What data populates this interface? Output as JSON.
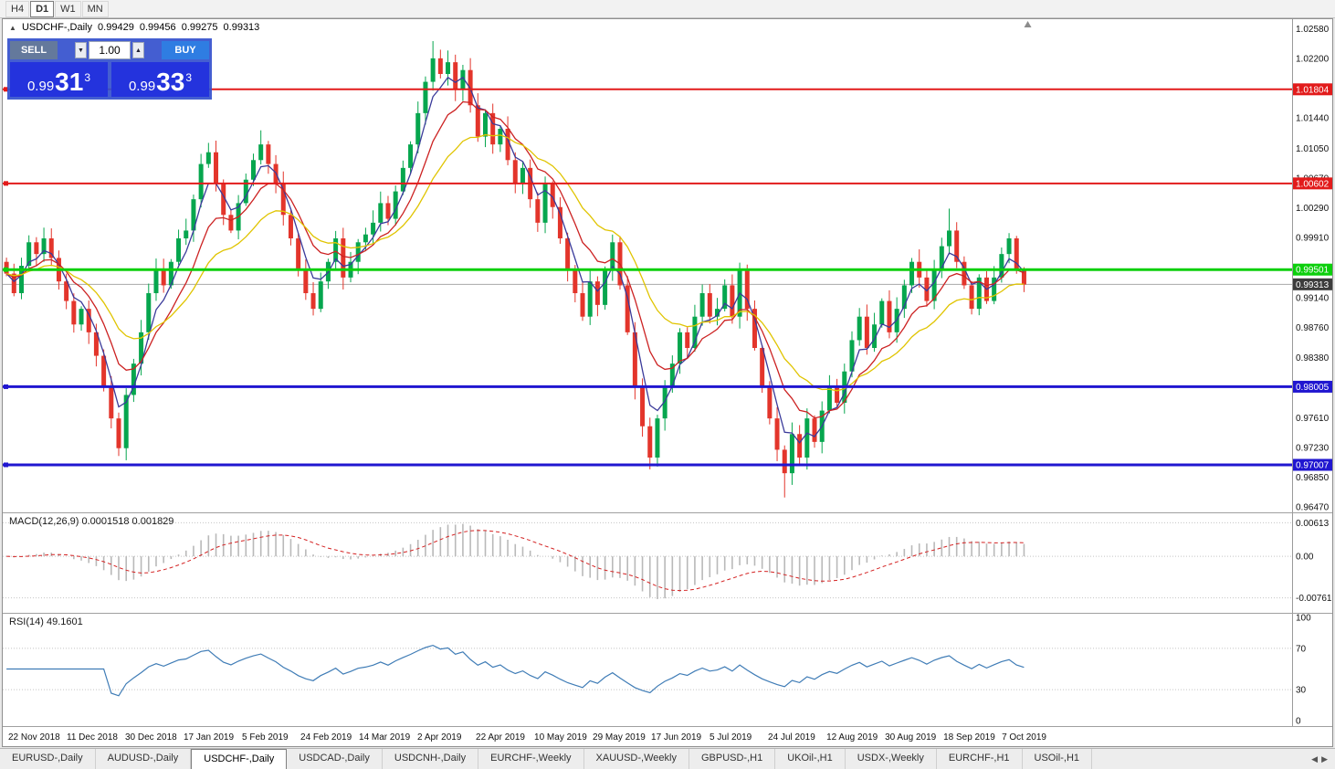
{
  "toolbar": {
    "timeframes": [
      {
        "label": "H4",
        "active": false
      },
      {
        "label": "D1",
        "active": true
      },
      {
        "label": "W1",
        "active": false
      },
      {
        "label": "MN",
        "active": false
      }
    ]
  },
  "chart_header": {
    "marker": "▲",
    "symbol": "USDCHF-,Daily",
    "open": "0.99429",
    "high": "0.99456",
    "low": "0.99275",
    "close": "0.99313"
  },
  "trade_panel": {
    "sell_label": "SELL",
    "buy_label": "BUY",
    "volume": "1.00",
    "spinner_down": "▼",
    "spinner_up": "▲",
    "sell_price": {
      "big": "0.99",
      "pips": "31",
      "pt": "3"
    },
    "buy_price": {
      "big": "0.99",
      "pips": "33",
      "pt": "3"
    }
  },
  "chart_data": {
    "type": "candlestick",
    "symbol": "USDCHF-",
    "timeframe": "Daily",
    "price_range": [
      0.964,
      1.027
    ],
    "data_fraction": 0.795,
    "current_price": {
      "value": 0.99313,
      "line_color": "#a8a8a8",
      "label_bg": "#3c3c3c"
    },
    "colors": {
      "up": "#06a64e",
      "down": "#e3352b"
    },
    "candles": {
      "first_open": 0.996,
      "closes": [
        0.9945,
        0.992,
        0.9955,
        0.9985,
        0.997,
        0.999,
        0.9965,
        0.9935,
        0.991,
        0.988,
        0.99,
        0.987,
        0.984,
        0.98,
        0.976,
        0.9722,
        0.979,
        0.983,
        0.987,
        0.992,
        0.995,
        0.993,
        0.996,
        0.999,
        1.0,
        1.004,
        1.0085,
        1.01,
        1.006,
        1.002,
        1.0,
        1.0035,
        1.0065,
        1.009,
        1.011,
        1.0085,
        1.006,
        1.002,
        0.999,
        0.995,
        0.992,
        0.99,
        0.9935,
        0.996,
        0.999,
        0.994,
        0.996,
        0.9985,
        0.9995,
        1.001,
        1.0035,
        1.0015,
        1.005,
        1.008,
        1.011,
        1.015,
        1.019,
        1.022,
        1.02,
        1.0215,
        1.018,
        1.0205,
        1.016,
        1.012,
        1.015,
        1.011,
        1.013,
        1.009,
        1.006,
        1.008,
        1.004,
        1.001,
        1.006,
        1.003,
        0.999,
        0.995,
        0.992,
        0.989,
        0.9935,
        0.9905,
        0.995,
        0.9985,
        0.993,
        0.987,
        0.98,
        0.975,
        0.971,
        0.976,
        0.98,
        0.983,
        0.987,
        0.985,
        0.989,
        0.992,
        0.989,
        0.99,
        0.993,
        0.989,
        0.995,
        0.99,
        0.985,
        0.98,
        0.976,
        0.972,
        0.969,
        0.974,
        0.971,
        0.976,
        0.973,
        0.977,
        0.98,
        0.978,
        0.982,
        0.986,
        0.989,
        0.985,
        0.988,
        0.991,
        0.987,
        0.99,
        0.993,
        0.996,
        0.994,
        0.991,
        0.995,
        0.998,
        1.0,
        0.996,
        0.993,
        0.99,
        0.994,
        0.991,
        0.994,
        0.997,
        0.999,
        0.995,
        0.9931
      ],
      "wick_overrides": {
        "15": {
          "low": 0.9712
        },
        "27": {
          "high": 1.0112
        },
        "34": {
          "high": 1.0128
        },
        "57": {
          "high": 1.0242
        },
        "59": {
          "high": 1.023
        },
        "86": {
          "low": 0.9695
        },
        "104": {
          "low": 0.9659
        },
        "126": {
          "high": 1.0028
        }
      }
    },
    "ma_lines": [
      {
        "period": 4,
        "color": "#3a3a9a"
      },
      {
        "period": 9,
        "color": "#cc2222"
      },
      {
        "period": 18,
        "color": "#e0c400"
      }
    ],
    "levels": [
      {
        "value": 1.01804,
        "color": "#e21b1b",
        "width": 2
      },
      {
        "value": 1.00602,
        "color": "#e21b1b",
        "width": 2
      },
      {
        "value": 0.99501,
        "color": "#0ccf0c",
        "width": 3
      },
      {
        "value": 0.98005,
        "color": "#2016d0",
        "width": 3
      },
      {
        "value": 0.97007,
        "color": "#2016d0",
        "width": 3
      }
    ],
    "y_ticks": [
      1.0258,
      1.022,
      1.0144,
      1.0105,
      1.0067,
      1.0029,
      0.9991,
      0.9914,
      0.9876,
      0.9838,
      0.9761,
      0.9723,
      0.9685,
      0.9647
    ],
    "x_labels": [
      "22 Nov 2018",
      "11 Dec 2018",
      "30 Dec 2018",
      "17 Jan 2019",
      "5 Feb 2019",
      "24 Feb 2019",
      "14 Mar 2019",
      "2 Apr 2019",
      "22 Apr 2019",
      "10 May 2019",
      "29 May 2019",
      "17 Jun 2019",
      "5 Jul 2019",
      "24 Jul 2019",
      "12 Aug 2019",
      "30 Aug 2019",
      "18 Sep 2019",
      "7 Oct 2019"
    ],
    "macd": {
      "label": "MACD(12,26,9)",
      "value_text": "0.0001518 0.001829",
      "fast": 12,
      "slow": 26,
      "signal_period": 9,
      "hist_color": "#b9b9b9",
      "signal_color": "#d42222",
      "axis": [
        {
          "v": 0.00613,
          "t": "0.00613"
        },
        {
          "v": 0,
          "t": "0.00"
        },
        {
          "v": -0.00761,
          "t": "-0.00761"
        }
      ]
    },
    "rsi": {
      "label": "RSI(14)",
      "value": "49.1601",
      "period": 14,
      "color": "#3f7cb6",
      "axis": [
        {
          "v": 100,
          "t": "100"
        },
        {
          "v": 70,
          "t": "70"
        },
        {
          "v": 30,
          "t": "30"
        },
        {
          "v": 0,
          "t": "0"
        }
      ],
      "guides": [
        70,
        30
      ]
    }
  },
  "tabs": [
    {
      "label": "EURUSD-,Daily",
      "active": false
    },
    {
      "label": "AUDUSD-,Daily",
      "active": false
    },
    {
      "label": "USDCHF-,Daily",
      "active": true
    },
    {
      "label": "USDCAD-,Daily",
      "active": false
    },
    {
      "label": "USDCNH-,Daily",
      "active": false
    },
    {
      "label": "EURCHF-,Weekly",
      "active": false
    },
    {
      "label": "XAUUSD-,Weekly",
      "active": false
    },
    {
      "label": "GBPUSD-,H1",
      "active": false
    },
    {
      "label": "UKOil-,H1",
      "active": false
    },
    {
      "label": "USDX-,Weekly",
      "active": false
    },
    {
      "label": "EURCHF-,H1",
      "active": false
    },
    {
      "label": "USOil-,H1",
      "active": false
    }
  ],
  "tab_scroll": {
    "left": "◀",
    "right": "▶"
  }
}
